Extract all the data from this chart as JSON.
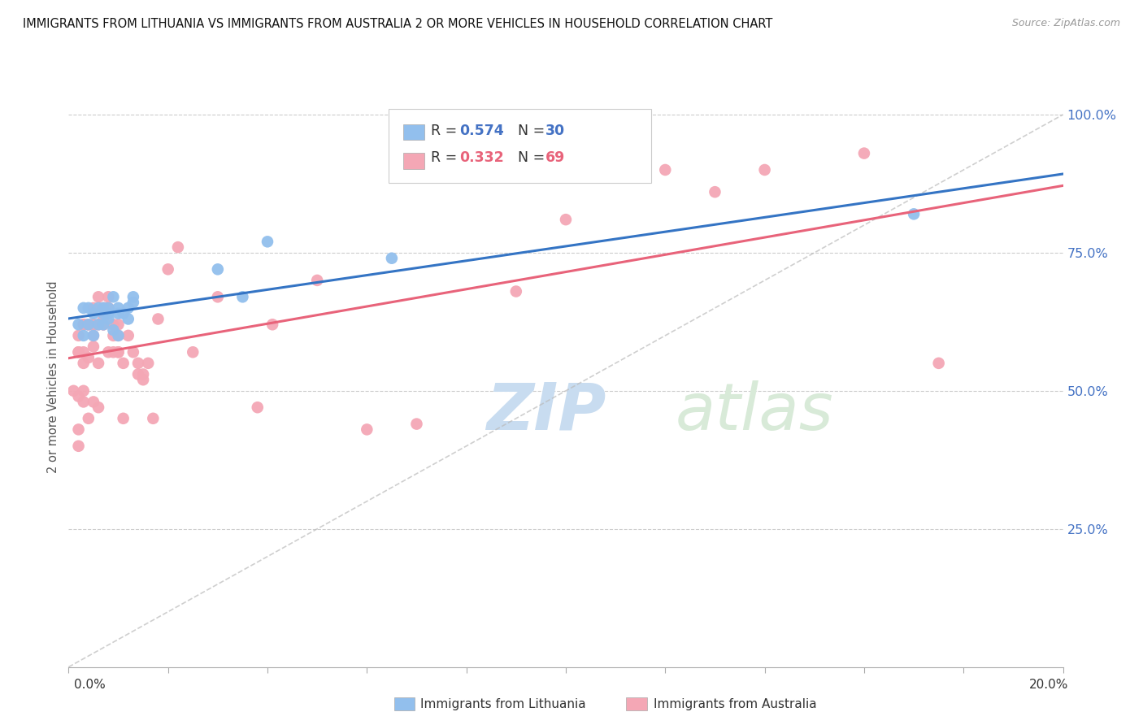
{
  "title": "IMMIGRANTS FROM LITHUANIA VS IMMIGRANTS FROM AUSTRALIA 2 OR MORE VEHICLES IN HOUSEHOLD CORRELATION CHART",
  "source": "Source: ZipAtlas.com",
  "ylabel": "2 or more Vehicles in Household",
  "xmin": 0.0,
  "xmax": 0.2,
  "ymin": 0.0,
  "ymax": 1.05,
  "yticks": [
    0.25,
    0.5,
    0.75,
    1.0
  ],
  "ytick_labels": [
    "25.0%",
    "50.0%",
    "75.0%",
    "100.0%"
  ],
  "xticks": [
    0.0,
    0.02,
    0.04,
    0.06,
    0.08,
    0.1,
    0.12,
    0.14,
    0.16,
    0.18,
    0.2
  ],
  "color_lithuania": "#92BFED",
  "color_australia": "#F4A7B5",
  "color_trendline_lithuania": "#3474C4",
  "color_trendline_australia": "#E8637A",
  "color_diagonal": "#BBBBBB",
  "watermark_zip": "ZIP",
  "watermark_atlas": "atlas",
  "watermark_color_zip": "#C8DCF0",
  "watermark_color_atlas": "#D8EAD8",
  "lithuania_x": [
    0.002,
    0.003,
    0.003,
    0.004,
    0.004,
    0.005,
    0.005,
    0.006,
    0.006,
    0.007,
    0.007,
    0.007,
    0.008,
    0.008,
    0.008,
    0.009,
    0.009,
    0.01,
    0.01,
    0.01,
    0.011,
    0.012,
    0.012,
    0.013,
    0.013,
    0.03,
    0.035,
    0.04,
    0.065,
    0.17
  ],
  "lithuania_y": [
    0.62,
    0.6,
    0.65,
    0.62,
    0.65,
    0.6,
    0.64,
    0.62,
    0.65,
    0.64,
    0.62,
    0.65,
    0.64,
    0.63,
    0.65,
    0.61,
    0.67,
    0.6,
    0.64,
    0.65,
    0.64,
    0.63,
    0.65,
    0.66,
    0.67,
    0.72,
    0.67,
    0.77,
    0.74,
    0.82
  ],
  "australia_x": [
    0.001,
    0.002,
    0.002,
    0.002,
    0.002,
    0.002,
    0.002,
    0.003,
    0.003,
    0.003,
    0.003,
    0.003,
    0.003,
    0.004,
    0.004,
    0.004,
    0.004,
    0.005,
    0.005,
    0.005,
    0.005,
    0.005,
    0.005,
    0.006,
    0.006,
    0.006,
    0.006,
    0.007,
    0.007,
    0.007,
    0.007,
    0.008,
    0.008,
    0.008,
    0.008,
    0.009,
    0.009,
    0.009,
    0.01,
    0.01,
    0.01,
    0.01,
    0.011,
    0.011,
    0.012,
    0.013,
    0.014,
    0.014,
    0.015,
    0.015,
    0.016,
    0.017,
    0.018,
    0.02,
    0.022,
    0.025,
    0.03,
    0.038,
    0.041,
    0.05,
    0.06,
    0.07,
    0.09,
    0.1,
    0.12,
    0.13,
    0.14,
    0.16,
    0.175
  ],
  "australia_y": [
    0.5,
    0.43,
    0.49,
    0.4,
    0.57,
    0.6,
    0.57,
    0.48,
    0.57,
    0.55,
    0.5,
    0.62,
    0.62,
    0.56,
    0.45,
    0.62,
    0.62,
    0.48,
    0.58,
    0.6,
    0.62,
    0.62,
    0.65,
    0.55,
    0.62,
    0.47,
    0.67,
    0.62,
    0.62,
    0.63,
    0.65,
    0.57,
    0.65,
    0.65,
    0.67,
    0.6,
    0.62,
    0.57,
    0.62,
    0.57,
    0.6,
    0.57,
    0.45,
    0.55,
    0.6,
    0.57,
    0.53,
    0.55,
    0.53,
    0.52,
    0.55,
    0.45,
    0.63,
    0.72,
    0.76,
    0.57,
    0.67,
    0.47,
    0.62,
    0.7,
    0.43,
    0.44,
    0.68,
    0.81,
    0.9,
    0.86,
    0.9,
    0.93,
    0.55
  ],
  "legend_r1_text": "R = ",
  "legend_r1_val": "0.574",
  "legend_n1_text": "N = ",
  "legend_n1_val": "30",
  "legend_r2_text": "R = ",
  "legend_r2_val": "0.332",
  "legend_n2_text": "N = ",
  "legend_n2_val": "69",
  "color_legend_val1": "#4472C4",
  "color_legend_val2": "#E8637A",
  "bottom_legend1": "Immigrants from Lithuania",
  "bottom_legend2": "Immigrants from Australia"
}
